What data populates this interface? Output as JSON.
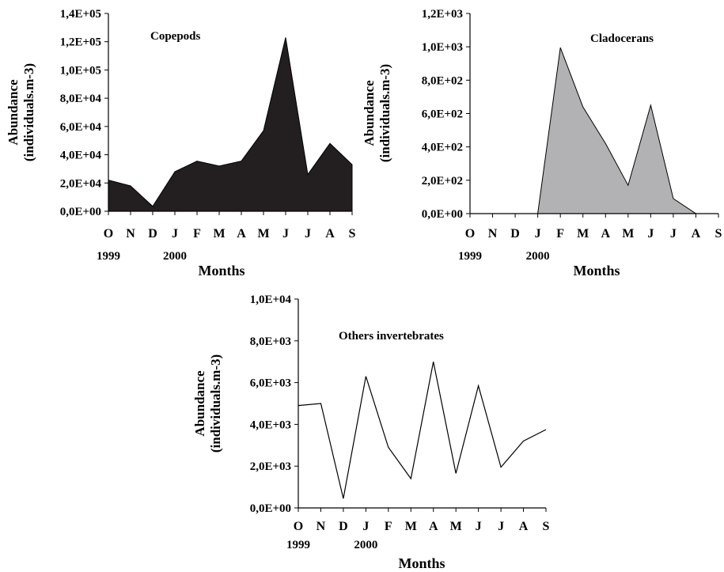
{
  "chart_data": [
    {
      "type": "area",
      "title": "Copepods",
      "ylabel_line1": "Abundance",
      "ylabel_line2": "(individuals.m-3)",
      "xlabel": "Months",
      "categories": [
        "O",
        "N",
        "D",
        "J",
        "F",
        "M",
        "A",
        "M",
        "J",
        "J",
        "A",
        "S"
      ],
      "year_labels": [
        {
          "index": 0,
          "text": "1999"
        },
        {
          "index": 3,
          "text": "2000"
        }
      ],
      "y_ticks": [
        "0,0E+00",
        "2,0E+04",
        "4,0E+04",
        "6,0E+04",
        "8,0E+04",
        "1,0E+05",
        "1,2E+05",
        "1,4E+05"
      ],
      "ylim": [
        0,
        140000
      ],
      "values": [
        22000,
        18000,
        3500,
        28000,
        35500,
        32000,
        35500,
        57000,
        123000,
        26000,
        48000,
        33000
      ],
      "fill": "#231f20"
    },
    {
      "type": "area",
      "title": "Cladocerans",
      "ylabel_line1": "Abundance",
      "ylabel_line2": "(individuals.m-3)",
      "xlabel": "Months",
      "categories": [
        "O",
        "N",
        "D",
        "J",
        "F",
        "M",
        "A",
        "M",
        "J",
        "J",
        "A",
        "S"
      ],
      "year_labels": [
        {
          "index": 0,
          "text": "1999"
        },
        {
          "index": 3,
          "text": "2000"
        }
      ],
      "y_ticks": [
        "0,0E+00",
        "2,0E+02",
        "4,0E+02",
        "6,0E+02",
        "8,0E+02",
        "1,0E+03",
        "1,2E+03"
      ],
      "ylim": [
        0,
        1200
      ],
      "values": [
        0,
        0,
        0,
        0,
        995,
        640,
        420,
        170,
        650,
        90,
        0,
        null
      ],
      "fill": "#b2b2b4"
    },
    {
      "type": "line",
      "title": "Others invertebrates",
      "ylabel_line1": "Abundance",
      "ylabel_line2": "(individuals.m-3)",
      "xlabel": "Months",
      "categories": [
        "O",
        "N",
        "D",
        "J",
        "F",
        "M",
        "A",
        "M",
        "J",
        "J",
        "A",
        "S"
      ],
      "year_labels": [
        {
          "index": 0,
          "text": "1999"
        },
        {
          "index": 3,
          "text": "2000"
        }
      ],
      "y_ticks": [
        "0,0E+00",
        "2,0E+03",
        "4,0E+03",
        "6,0E+03",
        "8,0E+03",
        "1,0E+04"
      ],
      "ylim": [
        0,
        10000
      ],
      "values": [
        4900,
        5000,
        450,
        6300,
        2900,
        1400,
        7000,
        1650,
        5850,
        1950,
        3200,
        3750
      ],
      "fill": "none"
    }
  ]
}
